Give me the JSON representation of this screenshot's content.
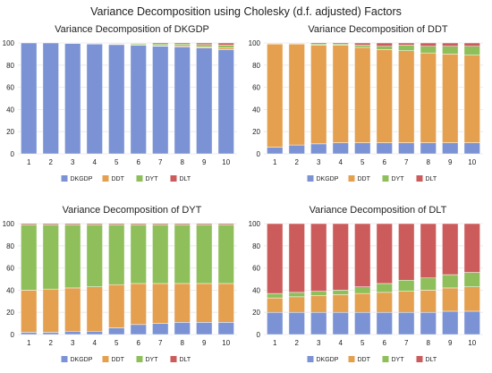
{
  "title": "Variance Decomposition using Cholesky (d.f. adjusted) Factors",
  "colors": {
    "DKGDP": "#7b93d4",
    "DDT": "#e4a04e",
    "DYT": "#8fbf5a",
    "DLT": "#cc5c5c"
  },
  "chart_data": [
    {
      "type": "bar",
      "stacked": true,
      "title": "Variance Decomposition of DKGDP",
      "categories": [
        "1",
        "2",
        "3",
        "4",
        "5",
        "6",
        "7",
        "8",
        "9",
        "10"
      ],
      "ylim": [
        0,
        100
      ],
      "yticks": [
        0,
        20,
        40,
        60,
        80,
        100
      ],
      "legend": "bottom",
      "series": [
        {
          "name": "DKGDP",
          "values": [
            100,
            100,
            99.5,
            99,
            98.5,
            98,
            97,
            96.5,
            95.5,
            94
          ]
        },
        {
          "name": "DDT",
          "values": [
            0,
            0,
            0,
            0,
            0.5,
            0.5,
            0.5,
            1,
            1,
            1.5
          ]
        },
        {
          "name": "DYT",
          "values": [
            0,
            0,
            0.5,
            0.5,
            0.5,
            1,
            1.5,
            1.5,
            2,
            2.5
          ]
        },
        {
          "name": "DLT",
          "values": [
            0,
            0,
            0,
            0.5,
            0.5,
            0.5,
            1,
            1,
            1.5,
            2
          ]
        }
      ]
    },
    {
      "type": "bar",
      "stacked": true,
      "title": "Variance Decomposition of DDT",
      "categories": [
        "1",
        "2",
        "3",
        "4",
        "5",
        "6",
        "7",
        "8",
        "9",
        "10"
      ],
      "ylim": [
        0,
        100
      ],
      "yticks": [
        0,
        20,
        40,
        60,
        80,
        100
      ],
      "legend": "bottom",
      "series": [
        {
          "name": "DKGDP",
          "values": [
            6,
            8,
            9,
            10,
            10,
            10,
            10,
            10,
            10,
            10
          ]
        },
        {
          "name": "DDT",
          "values": [
            93,
            91,
            89,
            88,
            86,
            84,
            83,
            81,
            80,
            79
          ]
        },
        {
          "name": "DYT",
          "values": [
            0.5,
            0.5,
            1,
            1,
            2,
            3,
            5,
            6,
            7,
            8
          ]
        },
        {
          "name": "DLT",
          "values": [
            0.5,
            0.5,
            1,
            1,
            2,
            3,
            2,
            3,
            3,
            3
          ]
        }
      ]
    },
    {
      "type": "bar",
      "stacked": true,
      "title": "Variance Decomposition of DYT",
      "categories": [
        "1",
        "2",
        "3",
        "4",
        "5",
        "6",
        "7",
        "8",
        "9",
        "10"
      ],
      "ylim": [
        0,
        100
      ],
      "yticks": [
        0,
        20,
        40,
        60,
        80,
        100
      ],
      "legend": "bottom",
      "series": [
        {
          "name": "DKGDP",
          "values": [
            2,
            2,
            3,
            3,
            6,
            9,
            10,
            11,
            11,
            11
          ]
        },
        {
          "name": "DDT",
          "values": [
            38,
            39,
            39,
            40,
            39,
            37,
            36,
            35,
            35,
            35
          ]
        },
        {
          "name": "DYT",
          "values": [
            59,
            58,
            57,
            56,
            54,
            53,
            53,
            53,
            53,
            53
          ]
        },
        {
          "name": "DLT",
          "values": [
            1,
            1,
            1,
            1,
            1,
            1,
            1,
            1,
            1,
            1
          ]
        }
      ]
    },
    {
      "type": "bar",
      "stacked": true,
      "title": "Variance Decomposition of DLT",
      "categories": [
        "1",
        "2",
        "3",
        "4",
        "5",
        "6",
        "7",
        "8",
        "9",
        "10"
      ],
      "ylim": [
        0,
        100
      ],
      "yticks": [
        0,
        20,
        40,
        60,
        80,
        100
      ],
      "legend": "bottom",
      "series": [
        {
          "name": "DKGDP",
          "values": [
            20,
            20,
            20,
            20,
            20,
            20,
            20,
            20,
            21,
            21
          ]
        },
        {
          "name": "DDT",
          "values": [
            13,
            14,
            15,
            16,
            17,
            18,
            19,
            20,
            21,
            22
          ]
        },
        {
          "name": "DYT",
          "values": [
            4,
            4,
            4,
            4,
            6,
            8,
            10,
            11,
            12,
            13
          ]
        },
        {
          "name": "DLT",
          "values": [
            63,
            62,
            61,
            60,
            57,
            54,
            51,
            49,
            46,
            44
          ]
        }
      ]
    }
  ]
}
